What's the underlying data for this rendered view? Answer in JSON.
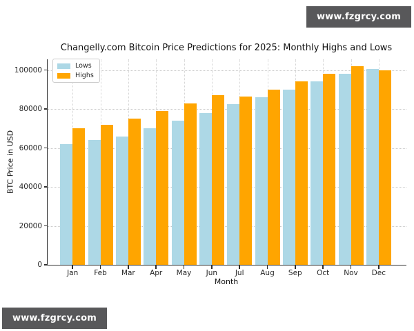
{
  "watermark": {
    "text": "www.fzgrcy.com",
    "bg_color": "#58585a",
    "text_color": "#ffffff"
  },
  "chart_data": {
    "type": "bar",
    "title": "Changelly.com Bitcoin Price Predictions for 2025: Monthly Highs and Lows",
    "xlabel": "Month",
    "ylabel": "BTC Price in USD",
    "categories": [
      "Jan",
      "Feb",
      "Mar",
      "Apr",
      "May",
      "Jun",
      "Jul",
      "Aug",
      "Sep",
      "Oct",
      "Nov",
      "Dec"
    ],
    "series": [
      {
        "name": "Lows",
        "color": "#ADD8E6",
        "values": [
          62000,
          64000,
          66000,
          70000,
          74000,
          78000,
          82500,
          86000,
          90000,
          94000,
          98000,
          100500
        ]
      },
      {
        "name": "Highs",
        "color": "#FFA500",
        "values": [
          70000,
          72000,
          75000,
          79000,
          83000,
          87000,
          86500,
          90000,
          94000,
          98000,
          102000,
          100000
        ]
      }
    ],
    "yticks": [
      0,
      20000,
      40000,
      60000,
      80000,
      100000
    ],
    "ylim": [
      0,
      105500
    ],
    "grid": "dotted both axes",
    "legend_position": "upper left"
  }
}
